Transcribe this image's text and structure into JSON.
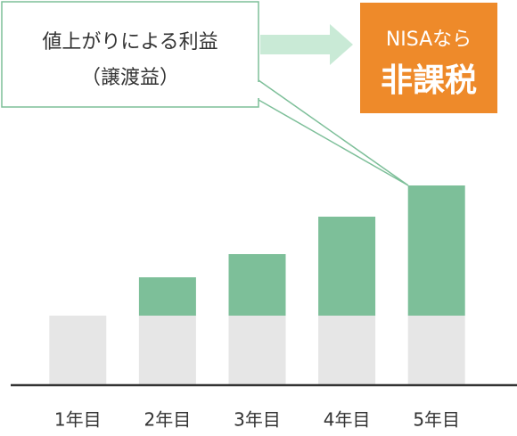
{
  "chart_data": {
    "type": "stacked_bar",
    "categories": [
      "1年目",
      "2年目",
      "3年目",
      "4年目",
      "5年目"
    ],
    "series": [
      {
        "color": "#e6e6e6",
        "values": [
          78,
          78,
          78,
          78,
          78
        ]
      },
      {
        "color": "#7dbf99",
        "values": [
          0,
          43,
          69,
          111,
          146
        ]
      }
    ],
    "callout": [
      "値上がりによる利益",
      "（譲渡益）"
    ],
    "badge": [
      "NISAなら",
      "非課税"
    ]
  }
}
